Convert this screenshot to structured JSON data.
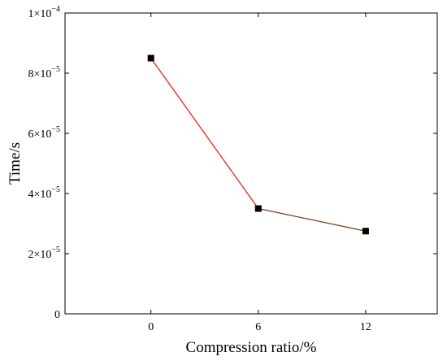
{
  "chart_data": {
    "type": "line",
    "xlabel": "Compression ratio/%",
    "ylabel": "Time/s",
    "x_ticks": [
      0,
      6,
      12
    ],
    "x_tick_labels": [
      "0",
      "6",
      "12"
    ],
    "xlim": [
      -4.8,
      16
    ],
    "ylim": [
      0,
      0.0001
    ],
    "y_ticks": [
      {
        "value": 0,
        "mantissa": "0",
        "exponent": ""
      },
      {
        "value": 2e-05,
        "mantissa": "2×10",
        "exponent": "−5"
      },
      {
        "value": 4e-05,
        "mantissa": "4×10",
        "exponent": "−5"
      },
      {
        "value": 6e-05,
        "mantissa": "6×10",
        "exponent": "−5"
      },
      {
        "value": 8e-05,
        "mantissa": "8×10",
        "exponent": "−5"
      },
      {
        "value": 0.0001,
        "mantissa": "1×10",
        "exponent": "−4"
      }
    ],
    "series": [
      {
        "x": [
          0,
          6,
          12
        ],
        "y": [
          8.5e-05,
          3.5e-05,
          2.75e-05
        ],
        "marker": "square",
        "marker_color": "#000000",
        "segment_colors": [
          "#e8231a",
          "#7a3a1a"
        ]
      }
    ],
    "grid": false,
    "legend": "none"
  }
}
